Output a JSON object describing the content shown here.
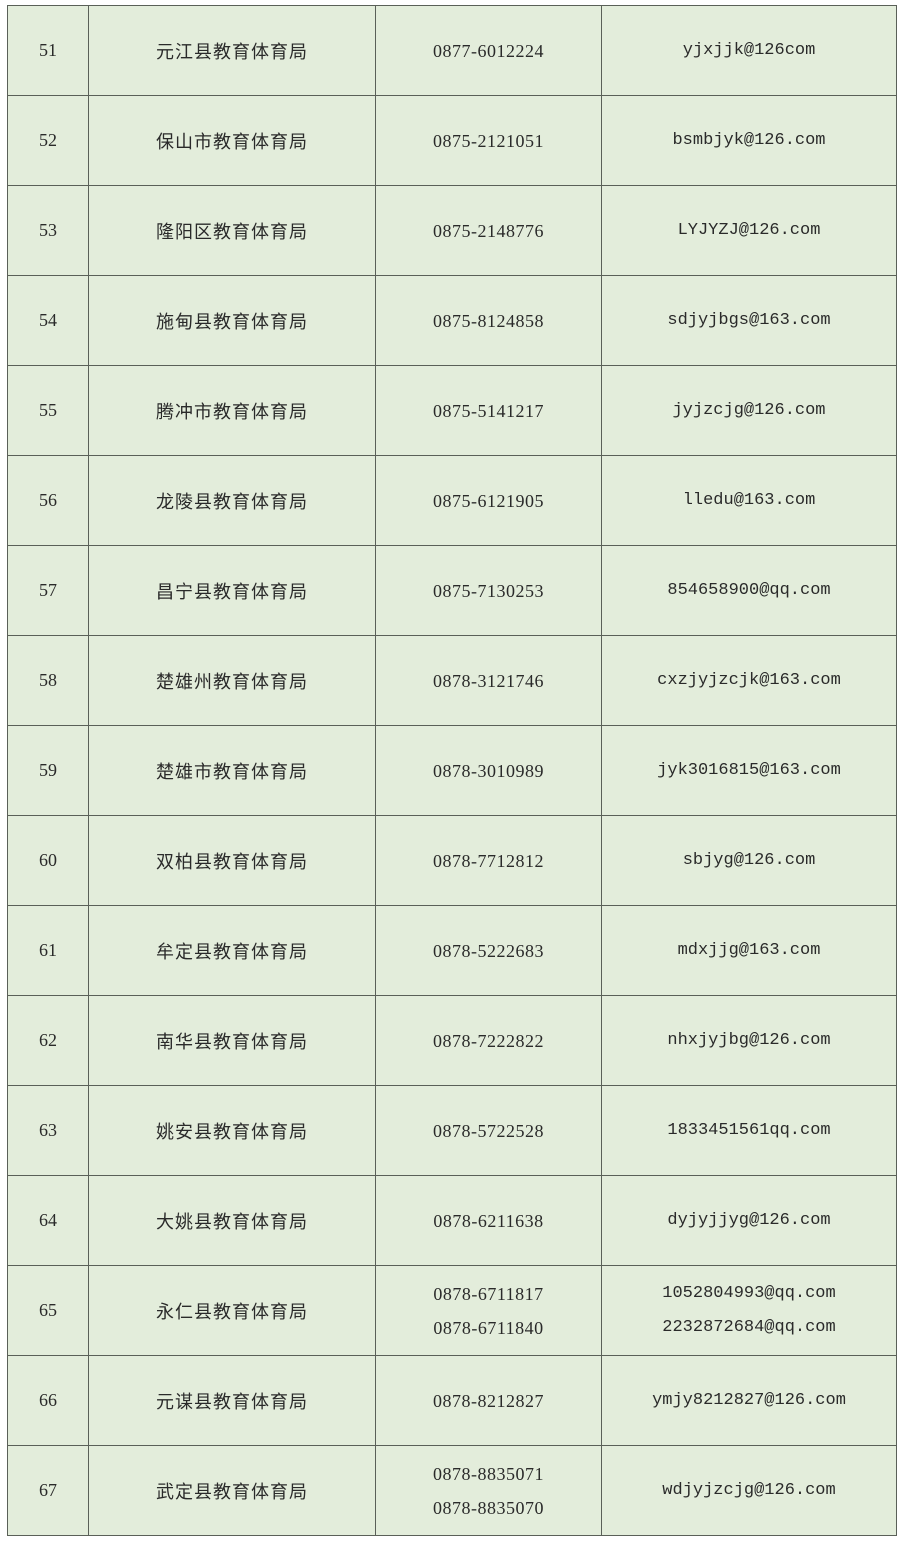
{
  "table": {
    "rows": [
      {
        "no": "51",
        "name": "元江县教育体育局",
        "phones": [
          "0877-6012224"
        ],
        "emails": [
          "yjxjjk@126com"
        ]
      },
      {
        "no": "52",
        "name": "保山市教育体育局",
        "phones": [
          "0875-2121051"
        ],
        "emails": [
          "bsmbjyk@126.com"
        ]
      },
      {
        "no": "53",
        "name": "隆阳区教育体育局",
        "phones": [
          "0875-2148776"
        ],
        "emails": [
          "LYJYZJ@126.com"
        ]
      },
      {
        "no": "54",
        "name": "施甸县教育体育局",
        "phones": [
          "0875-8124858"
        ],
        "emails": [
          "sdjyjbgs@163.com"
        ]
      },
      {
        "no": "55",
        "name": "腾冲市教育体育局",
        "phones": [
          "0875-5141217"
        ],
        "emails": [
          "jyjzcjg@126.com"
        ]
      },
      {
        "no": "56",
        "name": "龙陵县教育体育局",
        "phones": [
          "0875-6121905"
        ],
        "emails": [
          "lledu@163.com"
        ]
      },
      {
        "no": "57",
        "name": "昌宁县教育体育局",
        "phones": [
          "0875-7130253"
        ],
        "emails": [
          "854658900@qq.com"
        ]
      },
      {
        "no": "58",
        "name": "楚雄州教育体育局",
        "phones": [
          "0878-3121746"
        ],
        "emails": [
          "cxzjyjzcjk@163.com"
        ]
      },
      {
        "no": "59",
        "name": "楚雄市教育体育局",
        "phones": [
          "0878-3010989"
        ],
        "emails": [
          "jyk3016815@163.com"
        ]
      },
      {
        "no": "60",
        "name": "双柏县教育体育局",
        "phones": [
          "0878-7712812"
        ],
        "emails": [
          "sbjyg@126.com"
        ]
      },
      {
        "no": "61",
        "name": "牟定县教育体育局",
        "phones": [
          "0878-5222683"
        ],
        "emails": [
          "mdxjjg@163.com"
        ]
      },
      {
        "no": "62",
        "name": "南华县教育体育局",
        "phones": [
          "0878-7222822"
        ],
        "emails": [
          "nhxjyjbg@126.com"
        ]
      },
      {
        "no": "63",
        "name": "姚安县教育体育局",
        "phones": [
          "0878-5722528"
        ],
        "emails": [
          "1833451561qq.com"
        ]
      },
      {
        "no": "64",
        "name": "大姚县教育体育局",
        "phones": [
          "0878-6211638"
        ],
        "emails": [
          "dyjyjjyg@126.com"
        ]
      },
      {
        "no": "65",
        "name": "永仁县教育体育局",
        "phones": [
          "0878-6711817",
          "0878-6711840"
        ],
        "emails": [
          "1052804993@qq.com",
          "2232872684@qq.com"
        ]
      },
      {
        "no": "66",
        "name": "元谋县教育体育局",
        "phones": [
          "0878-8212827"
        ],
        "emails": [
          "ymjy8212827@126.com"
        ]
      },
      {
        "no": "67",
        "name": "武定县教育体育局",
        "phones": [
          "0878-8835071",
          "0878-8835070"
        ],
        "emails": [
          "wdjyjzcjg@126.com"
        ]
      }
    ]
  },
  "colors": {
    "cell_background": "#e3eddb",
    "border": "#5a6058"
  }
}
